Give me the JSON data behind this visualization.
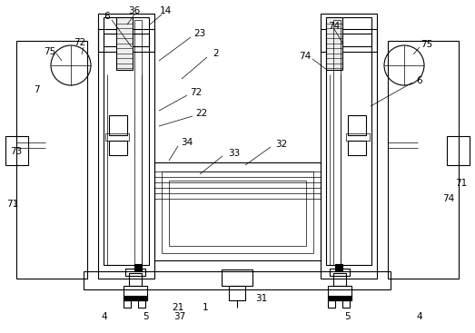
{
  "figure_width": 5.23,
  "figure_height": 3.67,
  "dpi": 100,
  "bg_color": "#ffffff",
  "line_color": "#000000",
  "lw": 0.8,
  "tlw": 0.5
}
